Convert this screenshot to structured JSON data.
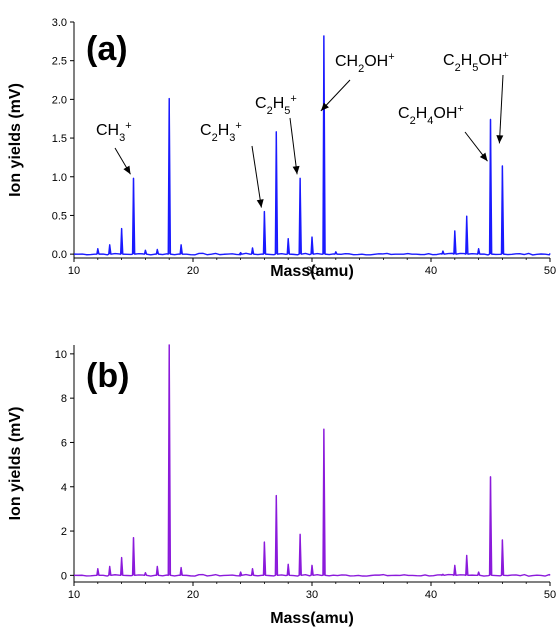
{
  "chart_data": [
    {
      "type": "line",
      "panel_label": "(a)",
      "xlabel": "Mass(amu)",
      "ylabel": "Ion yields (mV)",
      "xlim": [
        10,
        50
      ],
      "ylim": [
        -0.05,
        3.0
      ],
      "xticks": [
        10,
        20,
        30,
        40,
        50
      ],
      "yticks": [
        0.0,
        0.5,
        1.0,
        1.5,
        2.0,
        2.5,
        3.0
      ],
      "ytick_labels": [
        "0.0",
        "0.5",
        "1.0",
        "1.5",
        "2.0",
        "2.5",
        "3.0"
      ],
      "color": "#1a1aff",
      "grid": false,
      "peaks": [
        {
          "x": 12,
          "y": 0.07
        },
        {
          "x": 13,
          "y": 0.12
        },
        {
          "x": 14,
          "y": 0.33
        },
        {
          "x": 15,
          "y": 0.98
        },
        {
          "x": 16,
          "y": 0.05
        },
        {
          "x": 17,
          "y": 0.06
        },
        {
          "x": 18,
          "y": 2.01
        },
        {
          "x": 19,
          "y": 0.12
        },
        {
          "x": 24,
          "y": 0.02
        },
        {
          "x": 25,
          "y": 0.08
        },
        {
          "x": 26,
          "y": 0.55
        },
        {
          "x": 27,
          "y": 1.58
        },
        {
          "x": 28,
          "y": 0.2
        },
        {
          "x": 29,
          "y": 0.98
        },
        {
          "x": 30,
          "y": 0.22
        },
        {
          "x": 31,
          "y": 2.82
        },
        {
          "x": 32,
          "y": 0.03
        },
        {
          "x": 41,
          "y": 0.04
        },
        {
          "x": 42,
          "y": 0.3
        },
        {
          "x": 43,
          "y": 0.49
        },
        {
          "x": 44,
          "y": 0.07
        },
        {
          "x": 45,
          "y": 1.74
        },
        {
          "x": 46,
          "y": 1.14
        }
      ],
      "annotations": [
        {
          "base": "CH",
          "sub": "3",
          "sup": "+",
          "mass": 15,
          "mass_y": 0.98
        },
        {
          "base": "C",
          "sub": "2",
          "mid": "H",
          "sub2": "3",
          "sup": "+",
          "mass": 26,
          "mass_y": 0.55
        },
        {
          "base": "C",
          "sub": "2",
          "mid": "H",
          "sub2": "5",
          "sup": "+",
          "mass": 29,
          "mass_y": 0.98
        },
        {
          "base": "CH",
          "sub": "2",
          "mid": "OH",
          "sup": "+",
          "mass": 31,
          "mass_y": 1.8
        },
        {
          "base": "C",
          "sub": "2",
          "mid": "H",
          "sub2": "4",
          "tail": "OH",
          "sup": "+",
          "mass": 45,
          "mass_y": 1.15
        },
        {
          "base": "C",
          "sub": "2",
          "mid": "H",
          "sub2": "5",
          "tail": "OH",
          "sup": "+",
          "mass": 46,
          "mass_y": 1.38
        }
      ]
    },
    {
      "type": "line",
      "panel_label": "(b)",
      "xlabel": "Mass(amu)",
      "ylabel": "Ion yields (mV)",
      "xlim": [
        10,
        50
      ],
      "ylim": [
        -0.3,
        10.4
      ],
      "xticks": [
        10,
        20,
        30,
        40,
        50
      ],
      "yticks": [
        0,
        2,
        4,
        6,
        8,
        10
      ],
      "ytick_labels": [
        "0",
        "2",
        "4",
        "6",
        "8",
        "10"
      ],
      "color": "#8b1adb",
      "grid": false,
      "peaks": [
        {
          "x": 12,
          "y": 0.3
        },
        {
          "x": 13,
          "y": 0.4
        },
        {
          "x": 14,
          "y": 0.8
        },
        {
          "x": 15,
          "y": 1.7
        },
        {
          "x": 16,
          "y": 0.12
        },
        {
          "x": 17,
          "y": 0.4
        },
        {
          "x": 18,
          "y": 10.4
        },
        {
          "x": 19,
          "y": 0.35
        },
        {
          "x": 24,
          "y": 0.15
        },
        {
          "x": 25,
          "y": 0.3
        },
        {
          "x": 26,
          "y": 1.5
        },
        {
          "x": 27,
          "y": 3.6
        },
        {
          "x": 28,
          "y": 0.5
        },
        {
          "x": 29,
          "y": 1.85
        },
        {
          "x": 30,
          "y": 0.45
        },
        {
          "x": 31,
          "y": 6.6
        },
        {
          "x": 41,
          "y": 0.05
        },
        {
          "x": 42,
          "y": 0.45
        },
        {
          "x": 43,
          "y": 0.9
        },
        {
          "x": 44,
          "y": 0.15
        },
        {
          "x": 45,
          "y": 4.45
        },
        {
          "x": 46,
          "y": 1.6
        }
      ],
      "annotations": []
    }
  ]
}
